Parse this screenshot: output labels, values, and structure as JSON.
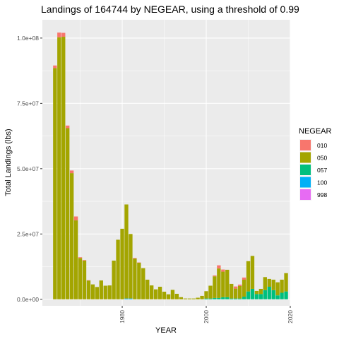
{
  "chart_data": {
    "type": "bar",
    "title": "Landings of 164744 by NEGEAR, using a threshold of 0.99",
    "xlabel": "YEAR",
    "ylabel": "Total Landings (lbs)",
    "xlim": [
      1961,
      2020
    ],
    "ylim": [
      -2500000,
      107000000
    ],
    "x_ticks": [
      1980,
      2000,
      2020
    ],
    "y_ticks": [
      0,
      25000000,
      50000000,
      75000000,
      100000000
    ],
    "y_tick_labels": [
      "0.0e+00",
      "2.5e+07",
      "5.0e+07",
      "7.5e+07",
      "1.0e+08"
    ],
    "grid": true,
    "legend_position": "right",
    "legend_title": "NEGEAR",
    "years": [
      1964,
      1965,
      1966,
      1967,
      1968,
      1969,
      1970,
      1971,
      1972,
      1973,
      1974,
      1975,
      1976,
      1977,
      1978,
      1979,
      1980,
      1981,
      1982,
      1983,
      1984,
      1985,
      1986,
      1987,
      1988,
      1989,
      1990,
      1991,
      1992,
      1993,
      1994,
      1995,
      1996,
      1997,
      1998,
      1999,
      2000,
      2001,
      2002,
      2003,
      2004,
      2005,
      2006,
      2007,
      2008,
      2009,
      2010,
      2011,
      2012,
      2013,
      2014,
      2015,
      2016,
      2017,
      2018,
      2019
    ],
    "series": [
      {
        "name": "010",
        "color": "#F8766D",
        "values": [
          1000000,
          1800000,
          1500000,
          1000000,
          1000000,
          1500000,
          300000,
          200000,
          100000,
          0,
          0,
          0,
          0,
          0,
          0,
          0,
          0,
          0,
          0,
          200000,
          100000,
          0,
          0,
          0,
          0,
          0,
          0,
          0,
          0,
          0,
          0,
          0,
          0,
          0,
          0,
          0,
          0,
          0,
          300000,
          1200000,
          800000,
          0,
          0,
          800000,
          500000,
          800000,
          0,
          0,
          0,
          0,
          0,
          0,
          0,
          0,
          0,
          0
        ]
      },
      {
        "name": "050",
        "color": "#A3A500",
        "values": [
          88500000,
          100300000,
          100500000,
          65500000,
          48300000,
          30200000,
          15800000,
          14800000,
          7200000,
          5700000,
          4700000,
          7200000,
          5200000,
          5300000,
          14800000,
          22800000,
          27000000,
          36000000,
          24700000,
          15600000,
          14000000,
          11900000,
          7500000,
          5300000,
          3800000,
          4800000,
          2900000,
          1900000,
          3600000,
          2100000,
          800000,
          300000,
          300000,
          300000,
          600000,
          1300000,
          2800000,
          4900000,
          8300000,
          11300000,
          9800000,
          10500000,
          5600000,
          3800000,
          4800000,
          6500000,
          11600000,
          12600000,
          1200000,
          2000000,
          5000000,
          3000000,
          4000000,
          5000000,
          5000000,
          7000000
        ]
      },
      {
        "name": "057",
        "color": "#00BF7D",
        "values": [
          0,
          0,
          0,
          0,
          0,
          0,
          0,
          0,
          0,
          0,
          0,
          0,
          0,
          0,
          0,
          0,
          0,
          0,
          0,
          0,
          0,
          0,
          0,
          0,
          0,
          0,
          0,
          0,
          0,
          0,
          0,
          0,
          0,
          0,
          0,
          0,
          300000,
          300000,
          500000,
          500000,
          800000,
          800000,
          300000,
          300000,
          300000,
          1000000,
          3000000,
          4000000,
          2000000,
          2000000,
          3500000,
          4800000,
          3500000,
          1500000,
          2500000,
          3000000
        ]
      },
      {
        "name": "100",
        "color": "#00B0F6",
        "values": [
          0,
          0,
          0,
          0,
          0,
          0,
          0,
          0,
          0,
          0,
          0,
          0,
          0,
          0,
          0,
          0,
          0,
          300000,
          300000,
          0,
          0,
          0,
          0,
          0,
          0,
          0,
          0,
          0,
          0,
          0,
          0,
          0,
          0,
          0,
          0,
          0,
          0,
          0,
          0,
          0,
          0,
          0,
          0,
          0,
          0,
          0,
          0,
          0,
          0,
          0,
          0,
          0,
          0,
          0,
          0,
          0
        ]
      },
      {
        "name": "998",
        "color": "#E76BF3",
        "values": [
          0,
          0,
          0,
          0,
          0,
          0,
          0,
          0,
          0,
          0,
          0,
          0,
          0,
          0,
          0,
          0,
          0,
          0,
          0,
          0,
          0,
          0,
          0,
          0,
          0,
          0,
          0,
          0,
          0,
          0,
          0,
          0,
          0,
          0,
          0,
          0,
          0,
          0,
          0,
          0,
          0,
          0,
          0,
          0,
          0,
          0,
          0,
          0,
          0,
          0,
          0,
          0,
          0,
          0,
          0,
          0
        ]
      }
    ]
  }
}
